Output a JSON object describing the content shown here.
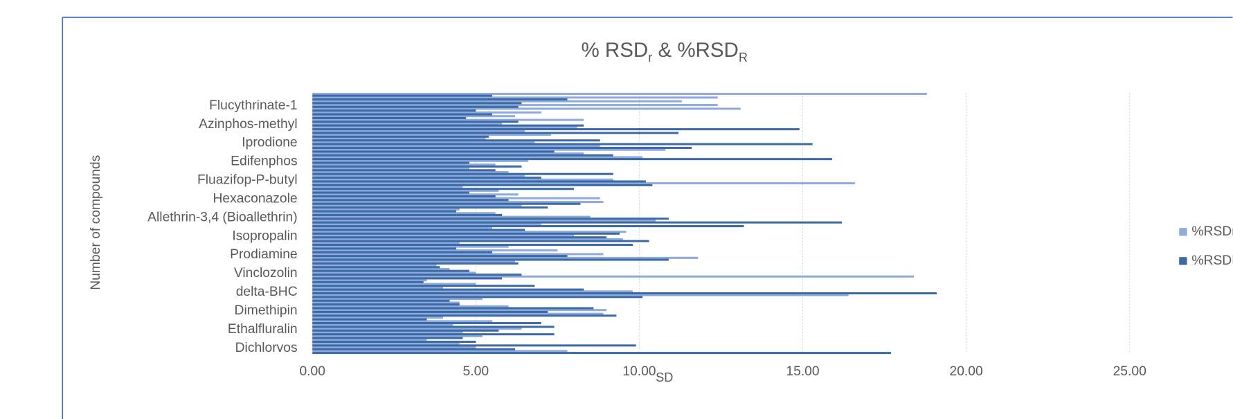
{
  "chart_data": {
    "type": "bar",
    "orientation": "horizontal",
    "title": [
      "% RSD",
      "r",
      " & %RSD",
      "R"
    ],
    "xlabel": "SD",
    "ylabel": "Number of compounds",
    "categories": [
      null,
      "Dichlorvos",
      null,
      null,
      null,
      null,
      "Ethalfluralin",
      null,
      null,
      null,
      null,
      "Dimethipin",
      null,
      null,
      null,
      null,
      "delta-BHC",
      null,
      null,
      null,
      null,
      "Vinclozolin",
      null,
      null,
      null,
      null,
      "Prodiamine",
      null,
      null,
      null,
      null,
      "Isopropalin",
      null,
      null,
      null,
      null,
      "Allethrin-3,4 (Bioallethrin)",
      null,
      null,
      null,
      null,
      "Hexaconazole",
      null,
      null,
      null,
      null,
      "Fluazifop-P-butyl",
      null,
      null,
      null,
      null,
      "Edifenphos",
      null,
      null,
      null,
      null,
      "Iprodione",
      null,
      null,
      null,
      null,
      "Azinphos-methyl",
      null,
      null,
      null,
      null,
      "Flucythrinate-1",
      null,
      null,
      null
    ],
    "series": [
      {
        "name": "%RSDr",
        "color": "#8faadc",
        "values": [
          7.8,
          5.0,
          4.5,
          3.5,
          5.2,
          4.6,
          6.4,
          4.3,
          5.5,
          4.0,
          8.9,
          9.0,
          6.0,
          4.5,
          5.2,
          16.4,
          9.8,
          4.0,
          5.0,
          3.5,
          18.4,
          5.0,
          4.2,
          3.8,
          6.2,
          11.8,
          8.9,
          7.5,
          6.0,
          4.5,
          9.5,
          8.0,
          9.6,
          5.5,
          7.0,
          10.5,
          8.5,
          5.6,
          4.5,
          6.4,
          8.9,
          8.8,
          6.3,
          5.7,
          4.6,
          16.6,
          9.2,
          6.5,
          6.0,
          4.8,
          5.6,
          6.6,
          10.1,
          8.3,
          10.8,
          8.8,
          6.8,
          5.3,
          7.3,
          6.5,
          8.1,
          5.8,
          8.3,
          6.2,
          7.0,
          13.1,
          12.4,
          11.3,
          12.4,
          18.8
        ]
      },
      {
        "name": "%RSDR",
        "color": "#3c6aa5",
        "values": [
          17.7,
          6.2,
          9.9,
          5.0,
          4.6,
          7.4,
          5.7,
          7.4,
          7.0,
          3.5,
          9.3,
          7.2,
          8.6,
          4.5,
          4.2,
          10.1,
          19.1,
          8.3,
          6.8,
          3.4,
          5.8,
          6.4,
          4.8,
          3.9,
          6.3,
          10.9,
          7.8,
          5.5,
          4.4,
          9.8,
          10.3,
          9.0,
          9.4,
          6.5,
          13.2,
          16.2,
          10.9,
          5.8,
          4.4,
          7.2,
          8.2,
          6.0,
          5.6,
          4.8,
          8.0,
          10.4,
          10.2,
          7.0,
          9.2,
          5.6,
          6.4,
          4.8,
          15.9,
          9.2,
          7.4,
          11.6,
          15.3,
          8.8,
          5.4,
          11.2,
          14.9,
          8.3,
          6.3,
          4.7,
          5.5,
          5.0,
          6.3,
          6.4,
          7.8,
          5.5
        ]
      }
    ],
    "xlim": [
      0,
      25
    ],
    "xticks": [
      {
        "value": 0,
        "label": "0.00"
      },
      {
        "value": 5,
        "label": "5.00"
      },
      {
        "value": 10,
        "label": "10.00"
      },
      {
        "value": 15,
        "label": "15.00"
      },
      {
        "value": 20,
        "label": "20.00"
      },
      {
        "value": 25,
        "label": "25.00"
      }
    ],
    "grid": true,
    "legend": "right"
  }
}
